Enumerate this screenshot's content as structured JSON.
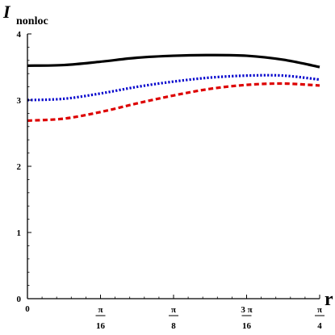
{
  "chart_data": {
    "type": "line",
    "ylabel_main": "I",
    "ylabel_sub": "nonloc",
    "xlabel": "r",
    "xlim": [
      0,
      0.7854
    ],
    "ylim": [
      0,
      4
    ],
    "grid": false,
    "x_ticks": [
      {
        "value": 0,
        "num": "0",
        "den": ""
      },
      {
        "value": 0.19635,
        "num": "π",
        "den": "16"
      },
      {
        "value": 0.3927,
        "num": "π",
        "den": "8"
      },
      {
        "value": 0.58905,
        "num": "3 π",
        "den": "16"
      },
      {
        "value": 0.7854,
        "num": "π",
        "den": "4"
      }
    ],
    "y_ticks": [
      {
        "value": 0,
        "label": "0"
      },
      {
        "value": 1,
        "label": "1"
      },
      {
        "value": 2,
        "label": "2"
      },
      {
        "value": 3,
        "label": "3"
      },
      {
        "value": 4,
        "label": "4"
      }
    ],
    "series": [
      {
        "color": "#000000",
        "dash": "solid",
        "x": [
          0,
          0.0982,
          0.19635,
          0.2945,
          0.3927,
          0.4909,
          0.58905,
          0.6872,
          0.7854
        ],
        "values": [
          3.52,
          3.53,
          3.58,
          3.64,
          3.67,
          3.68,
          3.67,
          3.61,
          3.5
        ]
      },
      {
        "color": "#0000cc",
        "dash": "dotted",
        "x": [
          0,
          0.0982,
          0.19635,
          0.2945,
          0.3927,
          0.4909,
          0.58905,
          0.6872,
          0.7854
        ],
        "values": [
          3.0,
          3.02,
          3.1,
          3.2,
          3.28,
          3.34,
          3.37,
          3.37,
          3.31
        ]
      },
      {
        "color": "#dd0000",
        "dash": "dashed",
        "x": [
          0,
          0.0982,
          0.19635,
          0.2945,
          0.3927,
          0.4909,
          0.58905,
          0.6872,
          0.7854
        ],
        "values": [
          2.69,
          2.72,
          2.82,
          2.95,
          3.07,
          3.17,
          3.23,
          3.25,
          3.22
        ]
      }
    ]
  }
}
